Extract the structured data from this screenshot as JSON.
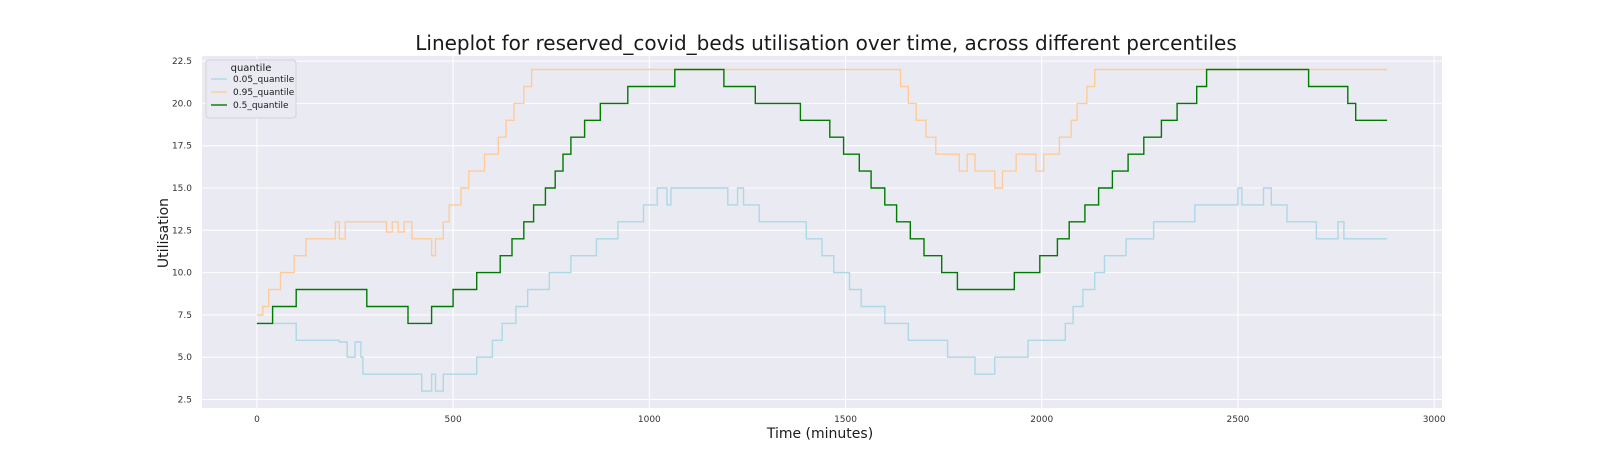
{
  "chart_data": {
    "type": "line",
    "title": "Lineplot for reserved_covid_beds utilisation over time, across different percentiles",
    "xlabel": "Time (minutes)",
    "ylabel": "Utilisation",
    "xlim": [
      -140,
      3020
    ],
    "ylim": [
      2.0,
      22.8
    ],
    "grid": true,
    "background": "#eaeaf2",
    "x_ticks": [
      0,
      500,
      1000,
      1500,
      2000,
      2500,
      3000
    ],
    "y_ticks": [
      2.5,
      5.0,
      7.5,
      10.0,
      12.5,
      15.0,
      17.5,
      20.0,
      22.5
    ],
    "legend": {
      "title": "quantile",
      "position": "top-left"
    },
    "series": [
      {
        "name": "0.05_quantile",
        "color": "#add8e6",
        "points": [
          [
            0,
            7
          ],
          [
            100,
            7
          ],
          [
            100,
            6
          ],
          [
            210,
            6
          ],
          [
            210,
            5.9
          ],
          [
            230,
            5.9
          ],
          [
            230,
            5
          ],
          [
            250,
            5
          ],
          [
            250,
            5.9
          ],
          [
            265,
            5.9
          ],
          [
            265,
            5
          ],
          [
            270,
            5
          ],
          [
            270,
            4
          ],
          [
            420,
            4
          ],
          [
            420,
            3
          ],
          [
            445,
            3
          ],
          [
            445,
            4
          ],
          [
            455,
            4
          ],
          [
            455,
            3
          ],
          [
            475,
            3
          ],
          [
            475,
            4
          ],
          [
            560,
            4
          ],
          [
            560,
            5
          ],
          [
            600,
            5
          ],
          [
            600,
            6
          ],
          [
            625,
            6
          ],
          [
            625,
            7
          ],
          [
            660,
            7
          ],
          [
            660,
            8
          ],
          [
            690,
            8
          ],
          [
            690,
            9
          ],
          [
            745,
            9
          ],
          [
            745,
            10
          ],
          [
            800,
            10
          ],
          [
            800,
            11
          ],
          [
            865,
            11
          ],
          [
            865,
            12
          ],
          [
            920,
            12
          ],
          [
            920,
            13
          ],
          [
            985,
            13
          ],
          [
            985,
            14
          ],
          [
            1020,
            14
          ],
          [
            1020,
            15
          ],
          [
            1045,
            15
          ],
          [
            1045,
            14
          ],
          [
            1055,
            14
          ],
          [
            1055,
            15
          ],
          [
            1200,
            15
          ],
          [
            1200,
            14
          ],
          [
            1225,
            14
          ],
          [
            1225,
            15
          ],
          [
            1240,
            15
          ],
          [
            1240,
            14
          ],
          [
            1280,
            14
          ],
          [
            1280,
            13
          ],
          [
            1400,
            13
          ],
          [
            1400,
            12
          ],
          [
            1440,
            12
          ],
          [
            1440,
            11
          ],
          [
            1470,
            11
          ],
          [
            1470,
            10
          ],
          [
            1510,
            10
          ],
          [
            1510,
            9
          ],
          [
            1540,
            9
          ],
          [
            1540,
            8
          ],
          [
            1600,
            8
          ],
          [
            1600,
            7
          ],
          [
            1660,
            7
          ],
          [
            1660,
            6
          ],
          [
            1760,
            6
          ],
          [
            1760,
            5
          ],
          [
            1830,
            5
          ],
          [
            1830,
            4
          ],
          [
            1880,
            4
          ],
          [
            1880,
            5
          ],
          [
            1965,
            5
          ],
          [
            1965,
            6
          ],
          [
            2060,
            6
          ],
          [
            2060,
            7
          ],
          [
            2080,
            7
          ],
          [
            2080,
            8
          ],
          [
            2105,
            8
          ],
          [
            2105,
            9
          ],
          [
            2135,
            9
          ],
          [
            2135,
            10
          ],
          [
            2160,
            10
          ],
          [
            2160,
            11
          ],
          [
            2215,
            11
          ],
          [
            2215,
            12
          ],
          [
            2285,
            12
          ],
          [
            2285,
            13
          ],
          [
            2390,
            13
          ],
          [
            2390,
            14
          ],
          [
            2500,
            14
          ],
          [
            2500,
            15
          ],
          [
            2510,
            15
          ],
          [
            2510,
            14
          ],
          [
            2565,
            14
          ],
          [
            2565,
            15
          ],
          [
            2585,
            15
          ],
          [
            2585,
            14
          ],
          [
            2625,
            14
          ],
          [
            2625,
            13
          ],
          [
            2700,
            13
          ],
          [
            2700,
            12
          ],
          [
            2755,
            12
          ],
          [
            2755,
            13
          ],
          [
            2770,
            13
          ],
          [
            2770,
            12
          ],
          [
            2880,
            12
          ]
        ]
      },
      {
        "name": "0.95_quantile",
        "color": "#ffcc99",
        "points": [
          [
            0,
            7.5
          ],
          [
            15,
            7.5
          ],
          [
            15,
            8
          ],
          [
            30,
            8
          ],
          [
            30,
            9
          ],
          [
            60,
            9
          ],
          [
            60,
            10
          ],
          [
            95,
            10
          ],
          [
            95,
            11
          ],
          [
            125,
            11
          ],
          [
            125,
            12
          ],
          [
            200,
            12
          ],
          [
            200,
            13
          ],
          [
            210,
            13
          ],
          [
            210,
            12
          ],
          [
            225,
            12
          ],
          [
            225,
            13
          ],
          [
            330,
            13
          ],
          [
            330,
            12.4
          ],
          [
            345,
            12.4
          ],
          [
            345,
            13
          ],
          [
            360,
            13
          ],
          [
            360,
            12.4
          ],
          [
            375,
            12.4
          ],
          [
            375,
            13
          ],
          [
            395,
            13
          ],
          [
            395,
            12
          ],
          [
            445,
            12
          ],
          [
            445,
            11
          ],
          [
            455,
            11
          ],
          [
            455,
            12
          ],
          [
            475,
            12
          ],
          [
            475,
            13
          ],
          [
            490,
            13
          ],
          [
            490,
            14
          ],
          [
            520,
            14
          ],
          [
            520,
            15
          ],
          [
            540,
            15
          ],
          [
            540,
            16
          ],
          [
            580,
            16
          ],
          [
            580,
            17
          ],
          [
            615,
            17
          ],
          [
            615,
            18
          ],
          [
            635,
            18
          ],
          [
            635,
            19
          ],
          [
            655,
            19
          ],
          [
            655,
            20
          ],
          [
            680,
            20
          ],
          [
            680,
            21
          ],
          [
            700,
            21
          ],
          [
            700,
            22
          ],
          [
            1640,
            22
          ],
          [
            1640,
            21
          ],
          [
            1660,
            21
          ],
          [
            1660,
            20
          ],
          [
            1680,
            20
          ],
          [
            1680,
            19
          ],
          [
            1705,
            19
          ],
          [
            1705,
            18
          ],
          [
            1730,
            18
          ],
          [
            1730,
            17
          ],
          [
            1790,
            17
          ],
          [
            1790,
            16
          ],
          [
            1810,
            16
          ],
          [
            1810,
            17
          ],
          [
            1830,
            17
          ],
          [
            1830,
            16
          ],
          [
            1880,
            16
          ],
          [
            1880,
            15
          ],
          [
            1900,
            15
          ],
          [
            1900,
            16
          ],
          [
            1935,
            16
          ],
          [
            1935,
            17
          ],
          [
            1985,
            17
          ],
          [
            1985,
            16
          ],
          [
            2005,
            16
          ],
          [
            2005,
            17
          ],
          [
            2045,
            17
          ],
          [
            2045,
            18
          ],
          [
            2075,
            18
          ],
          [
            2075,
            19
          ],
          [
            2090,
            19
          ],
          [
            2090,
            20
          ],
          [
            2115,
            20
          ],
          [
            2115,
            21
          ],
          [
            2135,
            21
          ],
          [
            2135,
            22
          ],
          [
            2880,
            22
          ]
        ]
      },
      {
        "name": "0.5_quantile",
        "color": "#007a00",
        "points": [
          [
            0,
            7
          ],
          [
            40,
            7
          ],
          [
            40,
            8
          ],
          [
            100,
            8
          ],
          [
            100,
            9
          ],
          [
            280,
            9
          ],
          [
            280,
            8
          ],
          [
            385,
            8
          ],
          [
            385,
            7
          ],
          [
            445,
            7
          ],
          [
            445,
            8
          ],
          [
            500,
            8
          ],
          [
            500,
            9
          ],
          [
            560,
            9
          ],
          [
            560,
            10
          ],
          [
            620,
            10
          ],
          [
            620,
            11
          ],
          [
            650,
            11
          ],
          [
            650,
            12
          ],
          [
            680,
            12
          ],
          [
            680,
            13
          ],
          [
            705,
            13
          ],
          [
            705,
            14
          ],
          [
            735,
            14
          ],
          [
            735,
            15
          ],
          [
            760,
            15
          ],
          [
            760,
            16
          ],
          [
            780,
            16
          ],
          [
            780,
            17
          ],
          [
            800,
            17
          ],
          [
            800,
            18
          ],
          [
            835,
            18
          ],
          [
            835,
            19
          ],
          [
            875,
            19
          ],
          [
            875,
            20
          ],
          [
            945,
            20
          ],
          [
            945,
            21
          ],
          [
            1065,
            21
          ],
          [
            1065,
            22
          ],
          [
            1190,
            22
          ],
          [
            1190,
            21
          ],
          [
            1270,
            21
          ],
          [
            1270,
            20
          ],
          [
            1385,
            20
          ],
          [
            1385,
            19
          ],
          [
            1460,
            19
          ],
          [
            1460,
            18
          ],
          [
            1495,
            18
          ],
          [
            1495,
            17
          ],
          [
            1535,
            17
          ],
          [
            1535,
            16
          ],
          [
            1565,
            16
          ],
          [
            1565,
            15
          ],
          [
            1600,
            15
          ],
          [
            1600,
            14
          ],
          [
            1630,
            14
          ],
          [
            1630,
            13
          ],
          [
            1665,
            13
          ],
          [
            1665,
            12
          ],
          [
            1700,
            12
          ],
          [
            1700,
            11
          ],
          [
            1745,
            11
          ],
          [
            1745,
            10
          ],
          [
            1785,
            10
          ],
          [
            1785,
            9
          ],
          [
            1930,
            9
          ],
          [
            1930,
            10
          ],
          [
            1995,
            10
          ],
          [
            1995,
            11
          ],
          [
            2040,
            11
          ],
          [
            2040,
            12
          ],
          [
            2070,
            12
          ],
          [
            2070,
            13
          ],
          [
            2110,
            13
          ],
          [
            2110,
            14
          ],
          [
            2145,
            14
          ],
          [
            2145,
            15
          ],
          [
            2180,
            15
          ],
          [
            2180,
            16
          ],
          [
            2220,
            16
          ],
          [
            2220,
            17
          ],
          [
            2260,
            17
          ],
          [
            2260,
            18
          ],
          [
            2305,
            18
          ],
          [
            2305,
            19
          ],
          [
            2345,
            19
          ],
          [
            2345,
            20
          ],
          [
            2395,
            20
          ],
          [
            2395,
            21
          ],
          [
            2420,
            21
          ],
          [
            2420,
            22
          ],
          [
            2680,
            22
          ],
          [
            2680,
            21
          ],
          [
            2780,
            21
          ],
          [
            2780,
            20
          ],
          [
            2800,
            20
          ],
          [
            2800,
            19
          ],
          [
            2880,
            19
          ]
        ]
      }
    ]
  }
}
